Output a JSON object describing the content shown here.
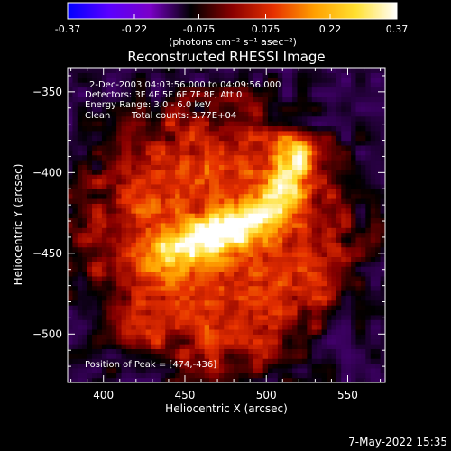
{
  "colorbar": {
    "ticks": [
      "-0.37",
      "-0.22",
      "-0.075",
      "0.075",
      "0.22",
      "0.37"
    ],
    "tick_values": [
      -0.37,
      -0.22,
      -0.075,
      0.075,
      0.22,
      0.37
    ],
    "range": [
      -0.37,
      0.37
    ],
    "unit_label": "(photons cm⁻² s⁻¹ asec⁻²)",
    "colormap": [
      "#0000ff",
      "#5a00ff",
      "#7a00c8",
      "#000000",
      "#8a0000",
      "#e63000",
      "#ffa000",
      "#ffe030",
      "#ffffff"
    ]
  },
  "title": "Reconstructed RHESSI Image",
  "annotations": {
    "line1": "2-Dec-2003 04:03:56.000 to 04:09:56.000",
    "line2": "Detectors: 3F 4F 5F 6F 7F 8F, Att 0",
    "line3": "Energy Range: 3.0 - 6.0 keV",
    "line4_left": "Clean",
    "line4_right": "Total counts: 3.77E+04",
    "peak": "Position of Peak = [474,-436]"
  },
  "footer_timestamp": "7-May-2022 15:35",
  "chart_data": {
    "type": "heatmap",
    "title": "Reconstructed RHESSI Image",
    "xlabel": "Heliocentric X (arcsec)",
    "ylabel": "Heliocentric Y (arcsec)",
    "xlim": [
      378,
      573
    ],
    "ylim": [
      -530,
      -335
    ],
    "xticks": [
      400,
      450,
      500,
      550
    ],
    "yticks": [
      -350,
      -400,
      -450,
      -500
    ],
    "xtick_labels": [
      "400",
      "450",
      "500",
      "550"
    ],
    "ytick_labels": [
      "−350",
      "−400",
      "−450",
      "−500"
    ],
    "value_range": [
      -0.37,
      0.37
    ],
    "peak_position": [
      474,
      -436
    ],
    "background_value": -0.12,
    "source": {
      "center": [
        470,
        -440
      ],
      "radius": 78,
      "base_value": 0.09
    },
    "ribbon": {
      "points": [
        [
          440,
          -450
        ],
        [
          460,
          -441
        ],
        [
          480,
          -435
        ],
        [
          500,
          -424
        ],
        [
          512,
          -408
        ],
        [
          518,
          -390
        ]
      ],
      "peak_value": 0.37
    }
  }
}
